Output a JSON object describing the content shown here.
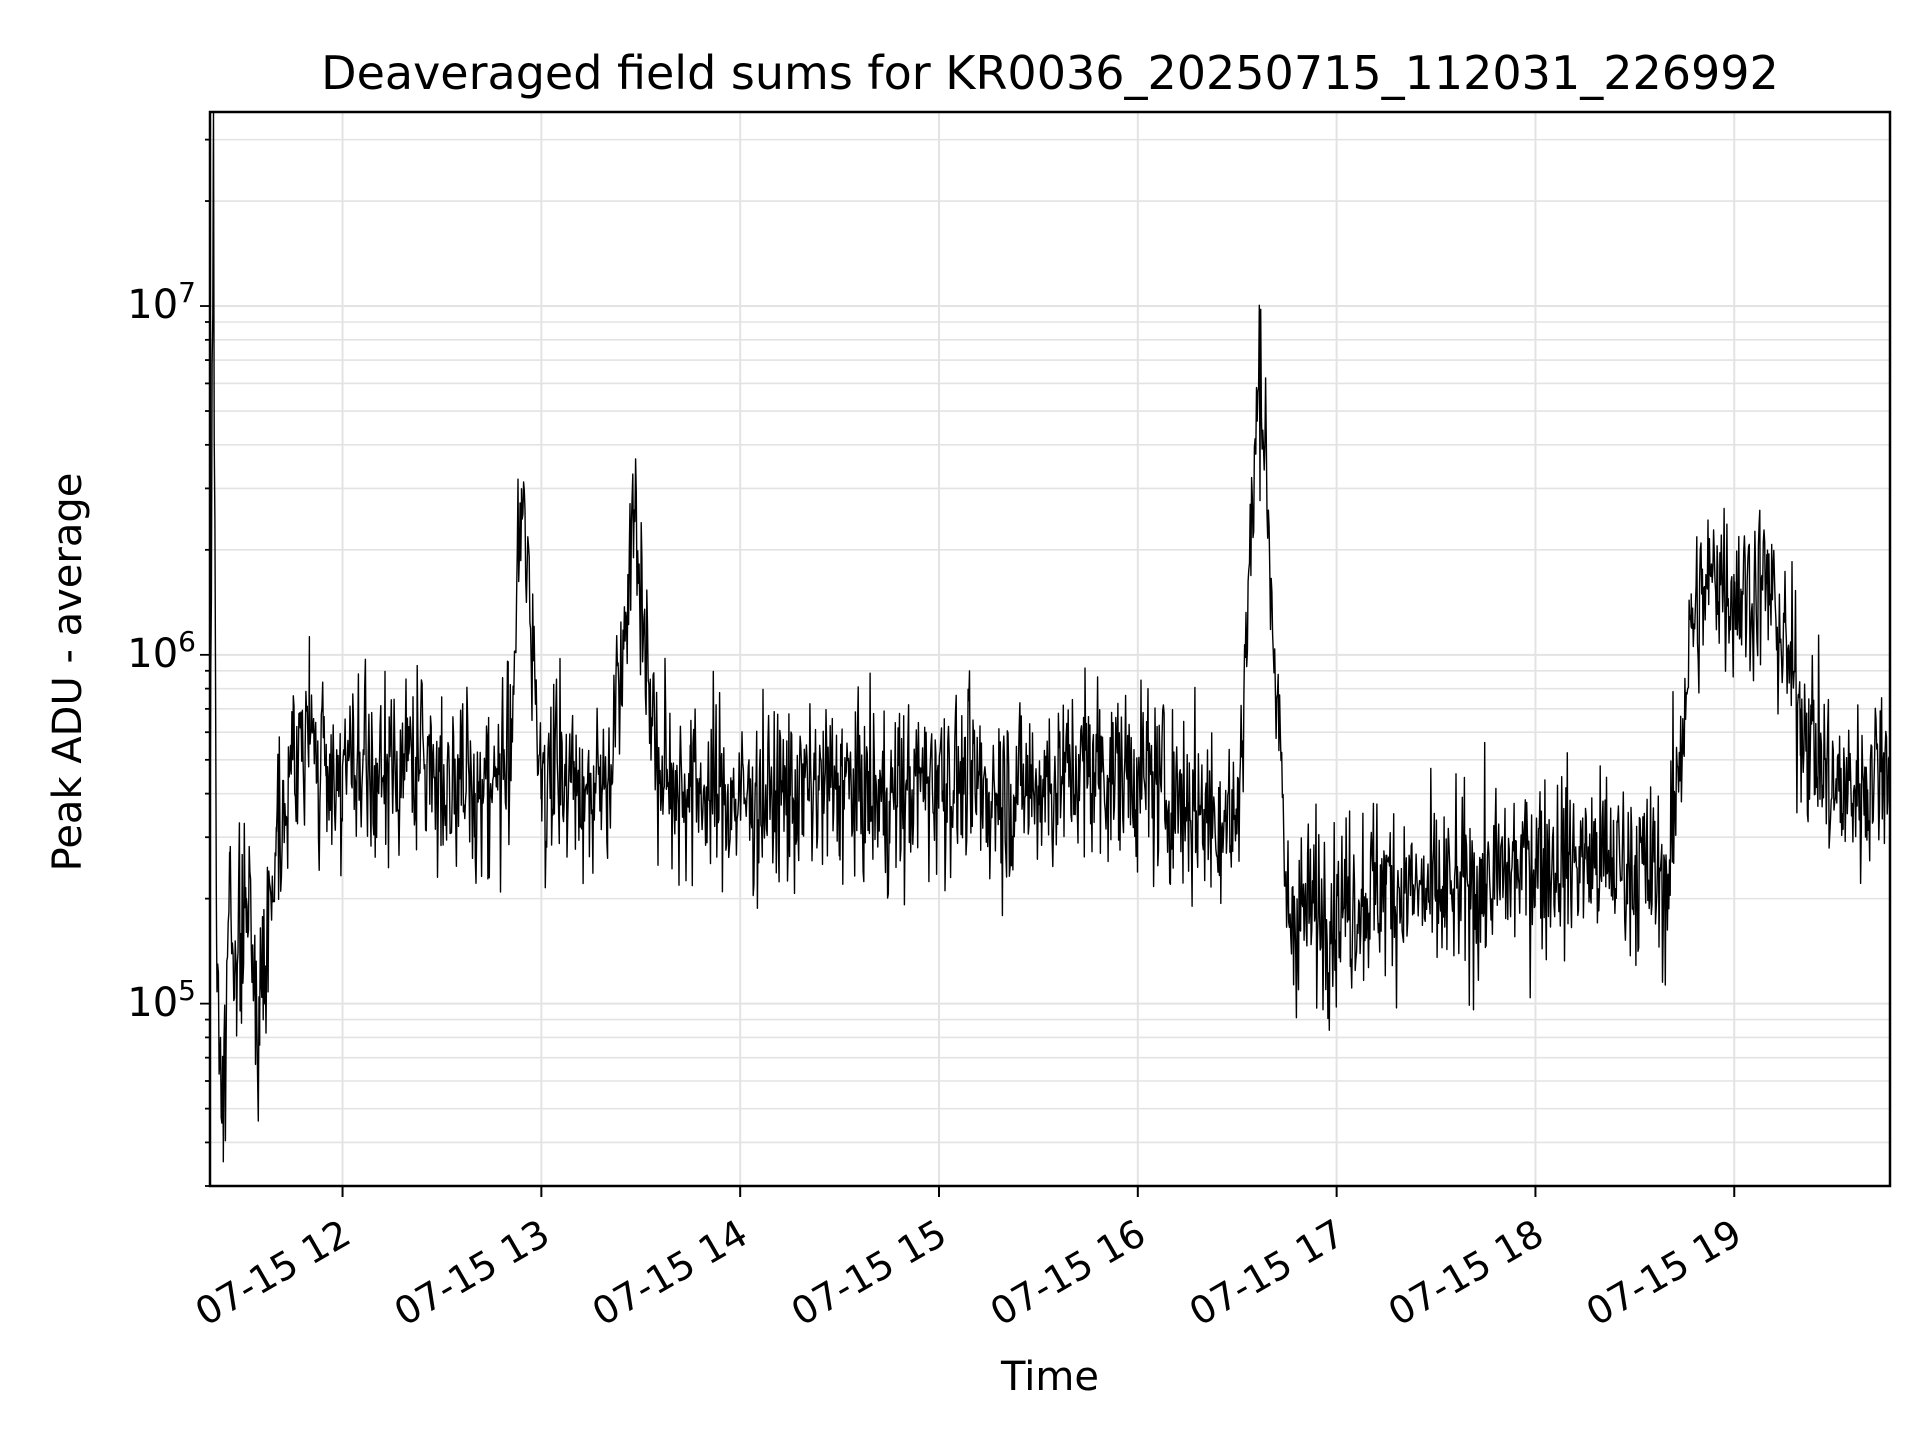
{
  "chart_data": {
    "type": "line",
    "title": "Deaveraged field sums for KR0036_20250715_112031_226992",
    "xlabel": "Time",
    "ylabel": "Peak ADU - average",
    "yscale": "log",
    "grid": true,
    "xlim": [
      "2025-07-15 11:20",
      "2025-07-15 19:47"
    ],
    "ylim": [
      30000,
      36000000
    ],
    "xticks": [
      "07-15 12",
      "07-15 13",
      "07-15 14",
      "07-15 15",
      "07-15 16",
      "07-15 17",
      "07-15 18",
      "07-15 19"
    ],
    "yticks": [
      {
        "base": "10",
        "exp": "5",
        "value": 100000
      },
      {
        "base": "10",
        "exp": "6",
        "value": 1000000
      },
      {
        "base": "10",
        "exp": "7",
        "value": 10000000
      }
    ],
    "line_color": "#000000",
    "series": [
      {
        "x": [
          "2025-07-15 11:20",
          "2025-07-15 11:21",
          "2025-07-15 11:22",
          "2025-07-15 11:24",
          "2025-07-15 11:26",
          "2025-07-15 11:28",
          "2025-07-15 11:31",
          "2025-07-15 11:35",
          "2025-07-15 11:40",
          "2025-07-15 11:45",
          "2025-07-15 11:50",
          "2025-07-15 11:55",
          "2025-07-15 12:00",
          "2025-07-15 12:10",
          "2025-07-15 12:20",
          "2025-07-15 12:30",
          "2025-07-15 12:40",
          "2025-07-15 12:50",
          "2025-07-15 12:54",
          "2025-07-15 13:00",
          "2025-07-15 13:10",
          "2025-07-15 13:20",
          "2025-07-15 13:28",
          "2025-07-15 13:35",
          "2025-07-15 13:45",
          "2025-07-15 14:00",
          "2025-07-15 14:15",
          "2025-07-15 14:30",
          "2025-07-15 14:45",
          "2025-07-15 15:00",
          "2025-07-15 15:15",
          "2025-07-15 15:30",
          "2025-07-15 15:45",
          "2025-07-15 16:00",
          "2025-07-15 16:15",
          "2025-07-15 16:30",
          "2025-07-15 16:37",
          "2025-07-15 16:45",
          "2025-07-15 17:00",
          "2025-07-15 17:15",
          "2025-07-15 17:30",
          "2025-07-15 17:45",
          "2025-07-15 18:00",
          "2025-07-15 18:15",
          "2025-07-15 18:30",
          "2025-07-15 18:40",
          "2025-07-15 18:47",
          "2025-07-15 18:55",
          "2025-07-15 19:00",
          "2025-07-15 19:10",
          "2025-07-15 19:20",
          "2025-07-15 19:30",
          "2025-07-15 19:40",
          "2025-07-15 19:47"
        ],
        "y": [
          300000,
          27000000,
          150000,
          40000,
          250000,
          120000,
          200000,
          90000,
          320000,
          500000,
          600000,
          450000,
          480000,
          420000,
          520000,
          450000,
          400000,
          480000,
          2700000,
          470000,
          430000,
          420000,
          2600000,
          450000,
          420000,
          380000,
          400000,
          420000,
          380000,
          460000,
          400000,
          420000,
          480000,
          450000,
          380000,
          330000,
          7500000,
          180000,
          190000,
          220000,
          200000,
          220000,
          260000,
          260000,
          250000,
          220000,
          1200000,
          1800000,
          1500000,
          1600000,
          700000,
          400000,
          420000,
          550000
        ]
      }
    ]
  }
}
